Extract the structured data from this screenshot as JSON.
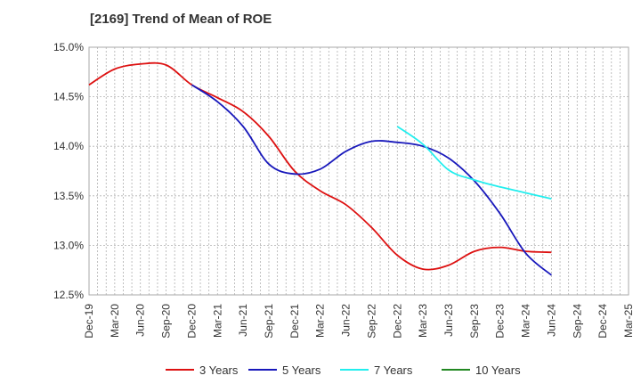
{
  "title": "[2169]  Trend of Mean of ROE",
  "chart_data": {
    "type": "line",
    "title": "[2169]  Trend of Mean of ROE",
    "xlabel": "",
    "ylabel": "",
    "x": [
      "Dec-19",
      "Mar-20",
      "Jun-20",
      "Sep-20",
      "Dec-20",
      "Mar-21",
      "Jun-21",
      "Sep-21",
      "Dec-21",
      "Mar-22",
      "Jun-22",
      "Sep-22",
      "Dec-22",
      "Mar-23",
      "Jun-23",
      "Sep-23",
      "Dec-23",
      "Mar-24",
      "Jun-24",
      "Sep-24",
      "Dec-24",
      "Mar-25"
    ],
    "y_ticks": [
      12.5,
      13.0,
      13.5,
      14.0,
      14.5,
      15.0
    ],
    "y_tick_labels": [
      "12.5%",
      "13.0%",
      "13.5%",
      "14.0%",
      "14.5%",
      "15.0%"
    ],
    "ylim": [
      12.5,
      15.0
    ],
    "grid": true,
    "legend_position": "bottom",
    "series": [
      {
        "name": "3 Years",
        "color": "#dd1111",
        "values": [
          14.62,
          14.78,
          14.83,
          14.82,
          14.62,
          14.49,
          14.35,
          14.1,
          13.75,
          13.55,
          13.41,
          13.18,
          12.9,
          12.76,
          12.8,
          12.94,
          12.98,
          12.94,
          12.93,
          null,
          null,
          null
        ]
      },
      {
        "name": "5 Years",
        "color": "#1818bb",
        "values": [
          null,
          null,
          null,
          null,
          14.62,
          14.45,
          14.2,
          13.82,
          13.72,
          13.77,
          13.95,
          14.05,
          14.04,
          14.0,
          13.88,
          13.65,
          13.32,
          12.92,
          12.7,
          null,
          null,
          null
        ]
      },
      {
        "name": "7 Years",
        "color": "#22eeee",
        "values": [
          null,
          null,
          null,
          null,
          null,
          null,
          null,
          null,
          null,
          null,
          null,
          null,
          14.2,
          14.02,
          13.76,
          13.66,
          13.59,
          13.53,
          13.47,
          null,
          null,
          null
        ]
      },
      {
        "name": "10 Years",
        "color": "#228822",
        "values": [
          null,
          null,
          null,
          null,
          null,
          null,
          null,
          null,
          null,
          null,
          null,
          null,
          null,
          null,
          null,
          null,
          null,
          null,
          null,
          null,
          null,
          null
        ]
      }
    ]
  }
}
